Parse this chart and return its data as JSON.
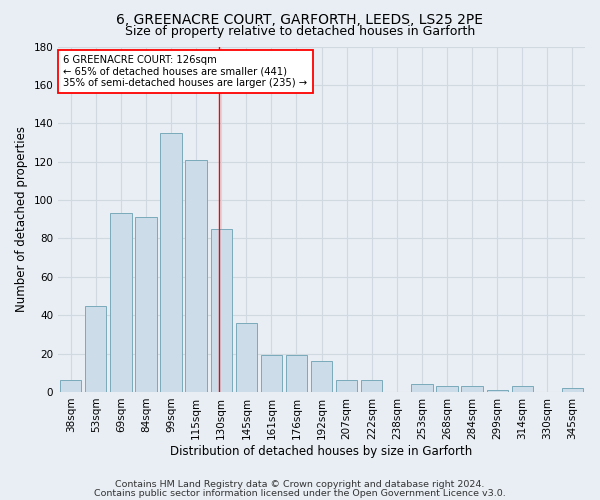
{
  "title_line1": "6, GREENACRE COURT, GARFORTH, LEEDS, LS25 2PE",
  "title_line2": "Size of property relative to detached houses in Garforth",
  "xlabel": "Distribution of detached houses by size in Garforth",
  "ylabel": "Number of detached properties",
  "categories": [
    "38sqm",
    "53sqm",
    "69sqm",
    "84sqm",
    "99sqm",
    "115sqm",
    "130sqm",
    "145sqm",
    "161sqm",
    "176sqm",
    "192sqm",
    "207sqm",
    "222sqm",
    "238sqm",
    "253sqm",
    "268sqm",
    "284sqm",
    "299sqm",
    "314sqm",
    "330sqm",
    "345sqm"
  ],
  "values": [
    6,
    45,
    93,
    91,
    135,
    121,
    85,
    36,
    19,
    19,
    16,
    6,
    6,
    0,
    4,
    3,
    3,
    1,
    3,
    0,
    2
  ],
  "bar_color": "#ccdce8",
  "bar_edge_color": "#7aaabb",
  "red_line_x": 5.93,
  "annotation_text": "6 GREENACRE COURT: 126sqm\n← 65% of detached houses are smaller (441)\n35% of semi-detached houses are larger (235) →",
  "annotation_box_color": "white",
  "annotation_box_edge": "red",
  "ylim": [
    0,
    180
  ],
  "yticks": [
    0,
    20,
    40,
    60,
    80,
    100,
    120,
    140,
    160,
    180
  ],
  "footer_line1": "Contains HM Land Registry data © Crown copyright and database right 2024.",
  "footer_line2": "Contains public sector information licensed under the Open Government Licence v3.0.",
  "bg_color": "#e8eef4",
  "plot_bg_color": "#e8eef4",
  "grid_color": "#d0d8e0",
  "title_fontsize": 10,
  "subtitle_fontsize": 9,
  "axis_label_fontsize": 8.5,
  "tick_fontsize": 7.5,
  "footer_fontsize": 6.8
}
